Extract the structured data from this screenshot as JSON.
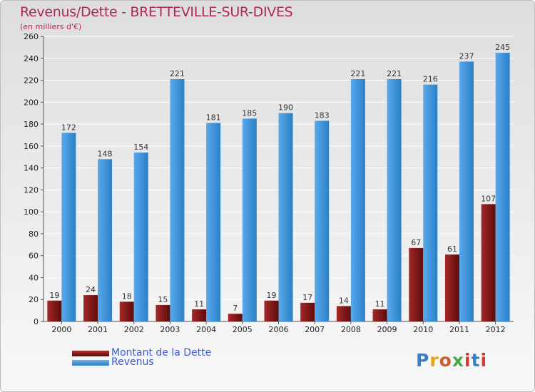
{
  "chart_data": {
    "type": "bar",
    "title": "Revenus/Dette - BRETTEVILLE-SUR-DIVES",
    "subtitle": "(en milliers d'€)",
    "categories": [
      "2000",
      "2001",
      "2002",
      "2003",
      "2004",
      "2005",
      "2006",
      "2007",
      "2008",
      "2009",
      "2010",
      "2011",
      "2012"
    ],
    "series": [
      {
        "name": "Montant de la Dette",
        "color": "#8b1a1a",
        "values": [
          19,
          24,
          18,
          15,
          11,
          7,
          19,
          17,
          14,
          11,
          67,
          61,
          107
        ]
      },
      {
        "name": "Revenus",
        "color": "#3f95dc",
        "values": [
          172,
          148,
          154,
          221,
          181,
          185,
          190,
          183,
          221,
          221,
          216,
          237,
          245
        ]
      }
    ],
    "ylim": [
      0,
      260
    ],
    "yticks": [
      0,
      20,
      40,
      60,
      80,
      100,
      120,
      140,
      160,
      180,
      200,
      220,
      240,
      260
    ],
    "xlabel": "",
    "ylabel": "",
    "grid": "horizontal",
    "legend": "bottom-left"
  },
  "logo": {
    "text": "Proxiti"
  }
}
